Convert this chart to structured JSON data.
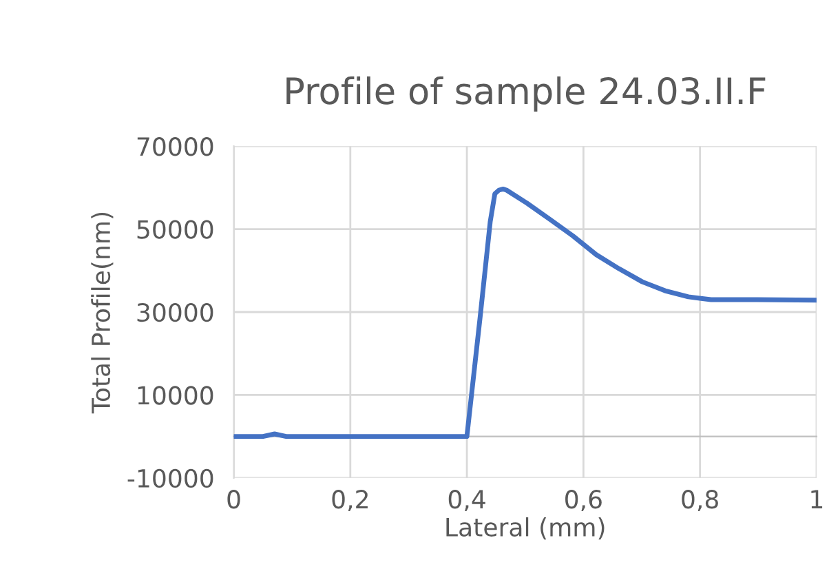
{
  "chart_data": {
    "type": "line",
    "title": "Profile of sample 24.03.II.F",
    "xlabel": "Lateral (mm)",
    "ylabel": "Total Profile(nm)",
    "x": [
      0,
      0.05,
      0.07,
      0.09,
      0.2,
      0.3,
      0.4,
      0.423,
      0.44,
      0.448,
      0.455,
      0.462,
      0.468,
      0.503,
      0.543,
      0.582,
      0.622,
      0.661,
      0.701,
      0.74,
      0.78,
      0.819,
      0.898,
      1.0
    ],
    "series": [
      {
        "color": "#4472c4",
        "values": [
          0,
          0,
          600,
          0,
          0,
          0,
          0,
          29150,
          51750,
          58530,
          59400,
          59660,
          59400,
          56270,
          52300,
          48360,
          43840,
          40450,
          37290,
          35140,
          33670,
          33000,
          33000,
          32880
        ]
      }
    ],
    "xlim": [
      0,
      1
    ],
    "xticks": [
      0,
      {
        "value": 0.2,
        "label": "0,2"
      },
      {
        "value": 0.4,
        "label": "0,4"
      },
      {
        "value": 0.6,
        "label": "0,6"
      },
      {
        "value": 0.8,
        "label": "0,8"
      },
      1
    ],
    "ylim": [
      -10000,
      70000
    ],
    "yticks": [
      -10000,
      10000,
      30000,
      50000,
      70000
    ],
    "grid": true,
    "marker": "none",
    "line_style": "solid",
    "legend": false
  }
}
